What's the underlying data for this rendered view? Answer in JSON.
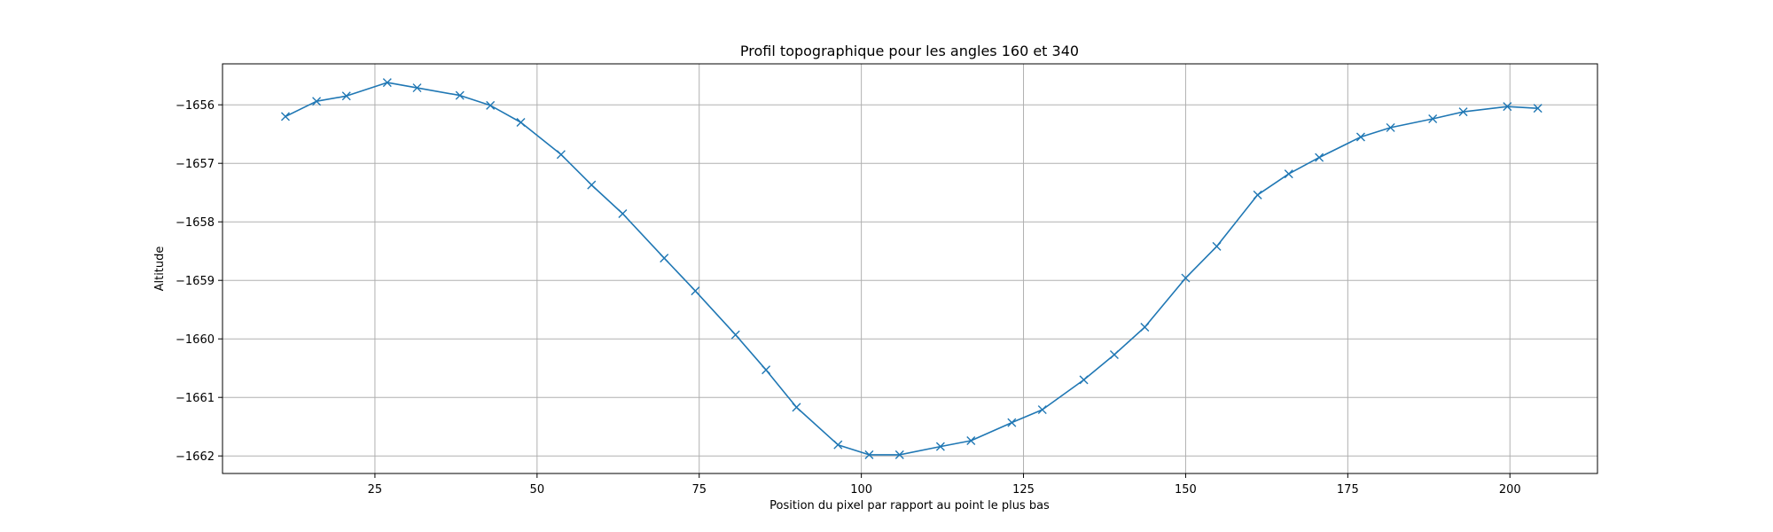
{
  "chart_data": {
    "type": "line",
    "title": "Profil topographique pour les angles 160 et 340",
    "xlabel": "Position du pixel par rapport au point le plus bas",
    "ylabel": "Altitude",
    "xlim": [
      1.5,
      213.5
    ],
    "ylim": [
      -1662.3,
      -1655.3
    ],
    "xticks": [
      25,
      50,
      75,
      100,
      125,
      150,
      175,
      200
    ],
    "yticks": [
      -1656,
      -1657,
      -1658,
      -1659,
      -1660,
      -1661,
      -1662
    ],
    "xtick_labels": [
      "25",
      "50",
      "75",
      "100",
      "125",
      "150",
      "175",
      "200"
    ],
    "ytick_labels": [
      "−1656",
      "−1657",
      "−1658",
      "−1659",
      "−1660",
      "−1661",
      "−1662"
    ],
    "grid": true,
    "marker": "x",
    "line_color": "#1f77b4",
    "x": [
      11.2,
      16.0,
      20.6,
      26.9,
      31.5,
      38.1,
      42.8,
      47.5,
      53.7,
      58.4,
      63.2,
      69.6,
      74.4,
      80.6,
      85.3,
      90.0,
      96.4,
      101.2,
      105.9,
      112.2,
      116.9,
      123.2,
      127.9,
      134.3,
      139.0,
      143.7,
      150.0,
      154.8,
      161.1,
      165.9,
      170.6,
      177.0,
      181.6,
      188.1,
      192.8,
      199.6,
      204.3
    ],
    "y": [
      -1656.2,
      -1655.94,
      -1655.85,
      -1655.62,
      -1655.71,
      -1655.84,
      -1656.01,
      -1656.3,
      -1656.85,
      -1657.37,
      -1657.86,
      -1658.62,
      -1659.18,
      -1659.93,
      -1660.53,
      -1661.17,
      -1661.81,
      -1661.98,
      -1661.98,
      -1661.84,
      -1661.74,
      -1661.43,
      -1661.21,
      -1660.7,
      -1660.27,
      -1659.8,
      -1658.96,
      -1658.42,
      -1657.54,
      -1657.18,
      -1656.9,
      -1656.55,
      -1656.39,
      -1656.24,
      -1656.12,
      -1656.03,
      -1656.06
    ]
  }
}
